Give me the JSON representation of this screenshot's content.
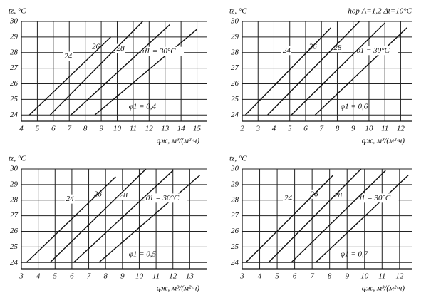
{
  "chart_data": [
    {
      "type": "line",
      "ylabel": "tz, °C",
      "xlabel": "qж, м³/(м²·ч)",
      "annotation": "φ1 = 0,4",
      "xlim": [
        4,
        15.6
      ],
      "ylim": [
        23.6,
        30
      ],
      "xticks": [
        4,
        5,
        6,
        7,
        8,
        9,
        10,
        11,
        12,
        13,
        14,
        15
      ],
      "yticks": [
        24,
        25,
        26,
        27,
        28,
        29,
        30
      ],
      "grid": true,
      "color": "#111111",
      "series": [
        {
          "name": "ϑ1 = 30°C",
          "x": [
            8.6,
            15
          ],
          "values": [
            24,
            29.5
          ]
        },
        {
          "name": "28",
          "x": [
            7.1,
            13.3
          ],
          "values": [
            24,
            29.8
          ]
        },
        {
          "name": "26",
          "x": [
            5.8,
            11.6
          ],
          "values": [
            24,
            30
          ]
        },
        {
          "name": "24",
          "x": [
            4.5,
            9.6
          ],
          "values": [
            24,
            29
          ]
        }
      ]
    },
    {
      "type": "line",
      "ylabel": "tz, °C",
      "xlabel": "qж, м³/(м²·ч)",
      "annotation": "φ1 = 0,6",
      "note": "hор A=1,2  Δt=10°C",
      "xlim": [
        2,
        12.7
      ],
      "ylim": [
        23.6,
        30
      ],
      "xticks": [
        2,
        3,
        4,
        5,
        6,
        7,
        8,
        9,
        10,
        11,
        12
      ],
      "yticks": [
        24,
        25,
        26,
        27,
        28,
        29,
        30
      ],
      "grid": true,
      "color": "#111111",
      "series": [
        {
          "name": "ϑ1 = 30°C",
          "x": [
            6.6,
            12.4
          ],
          "values": [
            24,
            29.6
          ]
        },
        {
          "name": "28",
          "x": [
            5.1,
            11
          ],
          "values": [
            24,
            29.9
          ]
        },
        {
          "name": "26",
          "x": [
            3.6,
            9.4
          ],
          "values": [
            24,
            30
          ]
        },
        {
          "name": "24",
          "x": [
            2.2,
            7.6
          ],
          "values": [
            24,
            29.6
          ]
        }
      ]
    },
    {
      "type": "line",
      "ylabel": "tz, °C",
      "xlabel": "qж, м³/(м²·ч)",
      "annotation": "φ1 = 0,5",
      "xlim": [
        3,
        14
      ],
      "ylim": [
        23.6,
        30
      ],
      "xticks": [
        3,
        4,
        5,
        6,
        7,
        8,
        9,
        10,
        11,
        12,
        13
      ],
      "yticks": [
        24,
        25,
        26,
        27,
        28,
        29,
        30
      ],
      "grid": true,
      "color": "#111111",
      "series": [
        {
          "name": "ϑ1 = 30°C",
          "x": [
            7.6,
            13.6
          ],
          "values": [
            24,
            29.6
          ]
        },
        {
          "name": "28",
          "x": [
            6.1,
            12
          ],
          "values": [
            24,
            29.9
          ]
        },
        {
          "name": "26",
          "x": [
            4.7,
            10.4
          ],
          "values": [
            24,
            30
          ]
        },
        {
          "name": "24",
          "x": [
            3.3,
            8.6
          ],
          "values": [
            24,
            29.5
          ]
        }
      ]
    },
    {
      "type": "line",
      "ylabel": "tz, °C",
      "xlabel": "qж, м³/(м²·ч)",
      "annotation": "φ1 = 0,7",
      "xlim": [
        3,
        12.7
      ],
      "ylim": [
        23.6,
        30
      ],
      "xticks": [
        3,
        4,
        5,
        6,
        7,
        8,
        9,
        10,
        11,
        12
      ],
      "yticks": [
        24,
        25,
        26,
        27,
        28,
        29,
        30
      ],
      "grid": true,
      "color": "#111111",
      "series": [
        {
          "name": "ϑ1 = 30°C",
          "x": [
            7.2,
            12.5
          ],
          "values": [
            24,
            29.6
          ]
        },
        {
          "name": "28",
          "x": [
            5.8,
            11.2
          ],
          "values": [
            24,
            29.9
          ]
        },
        {
          "name": "26",
          "x": [
            4.5,
            9.8
          ],
          "values": [
            24,
            30
          ]
        },
        {
          "name": "24",
          "x": [
            3.2,
            8.2
          ],
          "values": [
            24,
            29.6
          ]
        }
      ]
    }
  ]
}
